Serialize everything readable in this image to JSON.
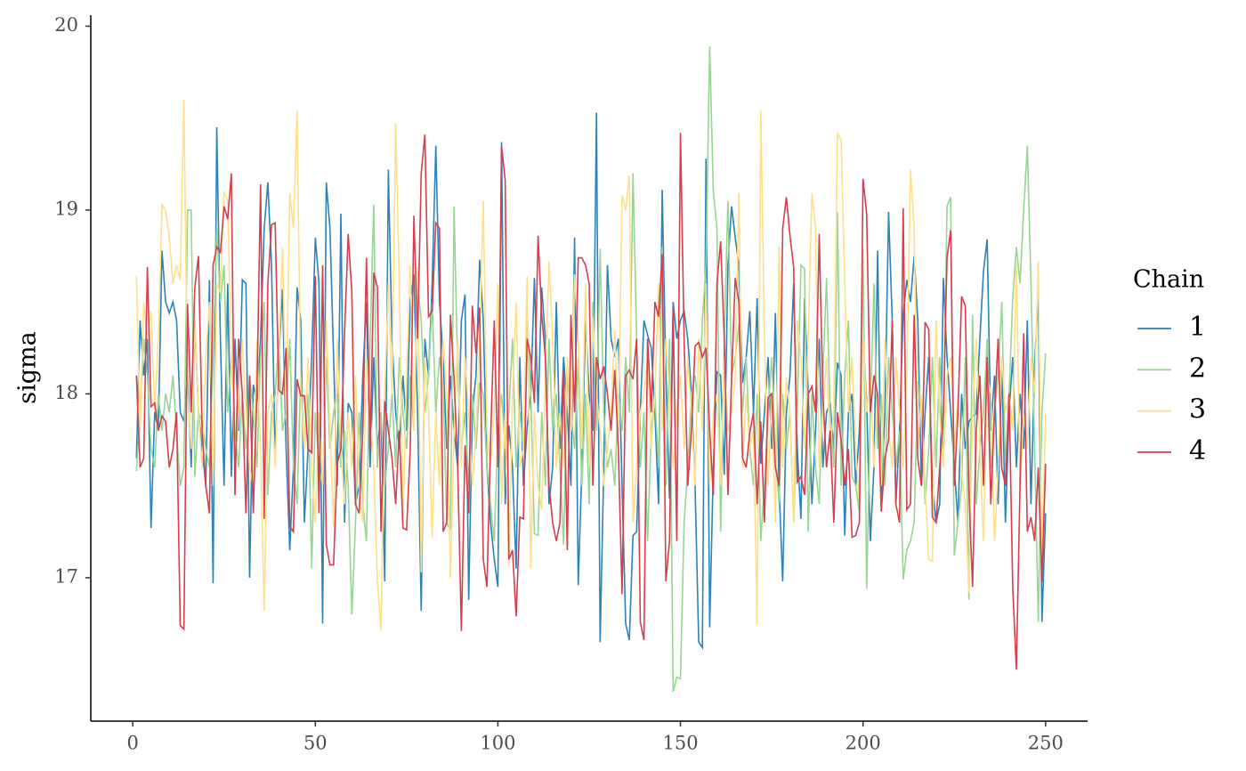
{
  "chart_data": {
    "type": "line",
    "ylabel": "sigma",
    "legend_title": "Chain",
    "legend": "right",
    "grid": false,
    "xlim": [
      -11.5,
      261.5
    ],
    "ylim": [
      16.22,
      20.06
    ],
    "xticks": [
      0,
      50,
      100,
      150,
      200,
      250
    ],
    "yticks": [
      17,
      18,
      19,
      20
    ],
    "x": [
      1,
      2,
      3,
      4,
      5,
      6,
      7,
      8,
      9,
      10,
      11,
      12,
      13,
      14,
      15,
      16,
      17,
      18,
      19,
      20,
      21,
      22,
      23,
      24,
      25,
      26,
      27,
      28,
      29,
      30,
      31,
      32,
      33,
      34,
      35,
      36,
      37,
      38,
      39,
      40,
      41,
      42,
      43,
      44,
      45,
      46,
      47,
      48,
      49,
      50,
      51,
      52,
      53,
      54,
      55,
      56,
      57,
      58,
      59,
      60,
      61,
      62,
      63,
      64,
      65,
      66,
      67,
      68,
      69,
      70,
      71,
      72,
      73,
      74,
      75,
      76,
      77,
      78,
      79,
      80,
      81,
      82,
      83,
      84,
      85,
      86,
      87,
      88,
      89,
      90,
      91,
      92,
      93,
      94,
      95,
      96,
      97,
      98,
      99,
      100,
      101,
      102,
      103,
      104,
      105,
      106,
      107,
      108,
      109,
      110,
      111,
      112,
      113,
      114,
      115,
      116,
      117,
      118,
      119,
      120,
      121,
      122,
      123,
      124,
      125,
      126,
      127,
      128,
      129,
      130,
      131,
      132,
      133,
      134,
      135,
      136,
      137,
      138,
      139,
      140,
      141,
      142,
      143,
      144,
      145,
      146,
      147,
      148,
      149,
      150,
      151,
      152,
      153,
      154,
      155,
      156,
      157,
      158,
      159,
      160,
      161,
      162,
      163,
      164,
      165,
      166,
      167,
      168,
      169,
      170,
      171,
      172,
      173,
      174,
      175,
      176,
      177,
      178,
      179,
      180,
      181,
      182,
      183,
      184,
      185,
      186,
      187,
      188,
      189,
      190,
      191,
      192,
      193,
      194,
      195,
      196,
      197,
      198,
      199,
      200,
      201,
      202,
      203,
      204,
      205,
      206,
      207,
      208,
      209,
      210,
      211,
      212,
      213,
      214,
      215,
      216,
      217,
      218,
      219,
      220,
      221,
      222,
      223,
      224,
      225,
      226,
      227,
      228,
      229,
      230,
      231,
      232,
      233,
      234,
      235,
      236,
      237,
      238,
      239,
      240,
      241,
      242,
      243,
      244,
      245,
      246,
      247,
      248,
      249,
      250
    ],
    "series": [
      {
        "name": "1",
        "color": "#2b83ba",
        "values": [
          17.65,
          18.4,
          18.1,
          18.3,
          17.27,
          17.9,
          17.8,
          18.78,
          18.5,
          18.44,
          18.5,
          18.4,
          17.9,
          17.85,
          18.1,
          17.6,
          18.38,
          17.9,
          17.7,
          17.5,
          18.62,
          16.97,
          19.45,
          18.3,
          17.5,
          18.6,
          17.55,
          18.3,
          17.8,
          18.62,
          18.6,
          17.0,
          18.05,
          17.95,
          18.3,
          18.9,
          19.15,
          18.7,
          17.65,
          18.2,
          18.57,
          17.7,
          17.15,
          17.6,
          18.58,
          18.4,
          17.3,
          17.7,
          18.2,
          18.85,
          18.6,
          16.75,
          19.15,
          18.9,
          18.2,
          17.5,
          18.98,
          17.3,
          17.95,
          17.9,
          17.4,
          17.5,
          18.1,
          18.5,
          17.6,
          18.2,
          17.7,
          17.9,
          16.98,
          19.22,
          18.3,
          17.9,
          17.7,
          18.1,
          17.8,
          18.5,
          18.65,
          17.9,
          16.82,
          18.3,
          18.1,
          18.6,
          19.35,
          18.5,
          18.2,
          17.7,
          18.1,
          17.8,
          17.6,
          18.4,
          18.54,
          16.88,
          17.9,
          18.1,
          18.73,
          18.4,
          17.6,
          17.3,
          17.1,
          16.95,
          19.37,
          17.4,
          17.83,
          17.6,
          17.05,
          18.2,
          17.5,
          17.82,
          18.0,
          18.63,
          17.9,
          18.58,
          18.3,
          17.4,
          17.6,
          18.5,
          17.7,
          18.2,
          17.9,
          17.5,
          18.85,
          16.96,
          17.6,
          18.4,
          18.0,
          17.8,
          19.53,
          16.65,
          17.6,
          18.7,
          18.3,
          18.2,
          18.3,
          17.5,
          16.75,
          16.66,
          17.23,
          17.25,
          17.9,
          18.4,
          18.32,
          18.25,
          17.9,
          17.4,
          19.11,
          18.1,
          17.43,
          18.5,
          18.3,
          18.4,
          18.45,
          18.3,
          18.0,
          17.5,
          16.65,
          16.62,
          19.28,
          16.73,
          17.6,
          18.12,
          18.1,
          17.56,
          18.7,
          19.02,
          18.85,
          18.7,
          18.06,
          18.2,
          18.45,
          17.9,
          18.52,
          17.62,
          17.9,
          18.2,
          17.7,
          18.44,
          17.5,
          16.98,
          17.9,
          18.1,
          18.6,
          17.7,
          17.32,
          18.52,
          18.0,
          17.4,
          17.8,
          18.3,
          17.6,
          17.9,
          17.95,
          17.7,
          18.17,
          18.1,
          17.23,
          17.9,
          18.0,
          17.5,
          17.8,
          18.3,
          17.95,
          17.2,
          17.6,
          18.78,
          17.45,
          17.9,
          18.99,
          18.4,
          17.4,
          17.8,
          18.43,
          18.62,
          18.5,
          18.75,
          18.4,
          17.5,
          17.9,
          18.2,
          17.51,
          17.3,
          17.4,
          18.63,
          18.2,
          17.9,
          17.6,
          17.3,
          18.0,
          17.7,
          17.85,
          17.88,
          17.89,
          18.3,
          18.67,
          18.84,
          17.8,
          18.1,
          17.4,
          18.16,
          17.3,
          17.9,
          18.2,
          17.6,
          18.0,
          17.7,
          18.4,
          17.4,
          18.16,
          18.54,
          16.76,
          17.35
        ]
      },
      {
        "name": "2",
        "color": "#99d594",
        "values": [
          17.58,
          17.9,
          18.3,
          18.1,
          17.7,
          17.6,
          18.0,
          17.8,
          18.0,
          17.9,
          18.1,
          17.8,
          17.5,
          17.6,
          19.0,
          19.0,
          17.55,
          17.9,
          17.85,
          17.7,
          17.6,
          18.2,
          18.9,
          18.5,
          18.7,
          17.9,
          18.2,
          17.8,
          17.6,
          18.0,
          17.7,
          18.1,
          17.9,
          17.6,
          18.2,
          18.5,
          17.45,
          17.9,
          18.0,
          18.3,
          17.8,
          17.9,
          18.3,
          17.6,
          17.4,
          18.1,
          17.7,
          18.0,
          17.05,
          17.9,
          17.6,
          17.5,
          18.2,
          17.7,
          17.9,
          18.0,
          17.6,
          17.8,
          17.5,
          16.8,
          17.3,
          17.9,
          17.4,
          17.2,
          18.3,
          19.03,
          17.6,
          17.9,
          17.5,
          17.7,
          18.0,
          17.6,
          18.2,
          17.9,
          17.7,
          18.1,
          17.8,
          18.6,
          18.4,
          17.9,
          18.1,
          18.5,
          17.9,
          18.2,
          18.05,
          17.3,
          17.26,
          19.02,
          18.1,
          17.7,
          17.9,
          17.5,
          18.0,
          17.7,
          18.06,
          18.0,
          17.6,
          17.4,
          17.2,
          17.8,
          18.0,
          17.7,
          17.9,
          18.3,
          17.6,
          17.9,
          17.7,
          18.45,
          18.0,
          17.24,
          17.23,
          17.9,
          17.5,
          18.3,
          17.8,
          18.0,
          17.6,
          17.18,
          18.1,
          17.9,
          17.7,
          18.2,
          17.5,
          18.0,
          17.4,
          18.5,
          17.8,
          18.79,
          17.9,
          17.6,
          17.7,
          17.5,
          18.0,
          17.8,
          18.2,
          17.9,
          19.2,
          18.3,
          17.6,
          17.9,
          17.2,
          17.8,
          18.0,
          17.6,
          18.8,
          17.5,
          18.3,
          16.38,
          16.46,
          16.45,
          17.3,
          17.6,
          18.0,
          18.1,
          17.9,
          18.4,
          18.7,
          19.89,
          19.1,
          18.9,
          17.25,
          18.3,
          19.05,
          18.1,
          18.2,
          18.38,
          17.9,
          18.2,
          17.7,
          17.5,
          18.0,
          17.2,
          17.5,
          17.9,
          18.2,
          17.7,
          17.4,
          18.0,
          17.7,
          17.9,
          17.3,
          17.9,
          18.7,
          18.68,
          17.25,
          18.0,
          17.6,
          17.4,
          18.1,
          18.63,
          17.9,
          17.6,
          18.99,
          17.5,
          18.1,
          18.4,
          17.55,
          17.5,
          17.36,
          18.79,
          16.94,
          17.9,
          18.6,
          17.7,
          18.0,
          17.5,
          18.2,
          17.9,
          17.6,
          17.8,
          16.99,
          17.15,
          17.2,
          17.3,
          18.07,
          17.9,
          17.4,
          17.7,
          18.2,
          17.6,
          18.2,
          17.7,
          19.02,
          19.07,
          17.12,
          17.3,
          17.5,
          18.2,
          16.88,
          18.43,
          17.4,
          17.7,
          17.9,
          18.3,
          17.6,
          17.9,
          18.1,
          18.5,
          17.6,
          18.0,
          18.52,
          18.8,
          18.6,
          19.0,
          19.35,
          18.6,
          17.7,
          16.76,
          17.9,
          18.22
        ]
      },
      {
        "name": "3",
        "color": "#fee08b",
        "values": [
          18.64,
          17.8,
          18.5,
          18.3,
          18.45,
          17.9,
          18.3,
          19.03,
          19.0,
          18.85,
          18.6,
          18.7,
          18.62,
          19.6,
          18.0,
          17.7,
          18.4,
          17.9,
          17.6,
          18.2,
          18.5,
          17.5,
          18.6,
          18.55,
          19.1,
          19.05,
          18.2,
          17.6,
          17.9,
          18.3,
          17.9,
          17.6,
          17.5,
          18.3,
          17.7,
          16.82,
          17.9,
          18.0,
          17.6,
          18.2,
          18.8,
          17.9,
          19.09,
          18.9,
          19.54,
          18.0,
          17.7,
          18.2,
          17.6,
          17.3,
          17.9,
          17.5,
          18.4,
          17.8,
          17.28,
          18.3,
          17.7,
          17.4,
          17.9,
          17.6,
          18.1,
          17.5,
          17.3,
          18.2,
          17.9,
          17.6,
          16.98,
          16.71,
          18.0,
          18.6,
          18.0,
          19.47,
          18.6,
          17.33,
          18.1,
          18.7,
          17.8,
          18.69,
          17.03,
          18.2,
          17.9,
          17.22,
          17.9,
          17.5,
          18.3,
          18.0,
          17.0,
          17.8,
          18.3,
          17.6,
          18.2,
          17.9,
          17.5,
          17.8,
          18.3,
          19.05,
          17.8,
          17.6,
          17.9,
          18.6,
          17.4,
          17.9,
          17.06,
          18.0,
          18.5,
          17.6,
          17.7,
          18.64,
          17.05,
          17.9,
          17.5,
          17.37,
          18.1,
          18.72,
          18.3,
          17.6,
          17.9,
          17.6,
          18.2,
          17.8,
          18.65,
          18.3,
          17.7,
          18.6,
          17.6,
          18.42,
          18.0,
          17.8,
          17.5,
          17.7,
          17.9,
          18.35,
          17.8,
          19.08,
          19.0,
          19.19,
          17.3,
          17.6,
          17.9,
          18.0,
          18.2,
          17.7,
          18.0,
          18.6,
          17.8,
          18.3,
          18.0,
          17.6,
          17.9,
          18.1,
          17.7,
          18.2,
          17.9,
          17.5,
          18.3,
          17.8,
          18.6,
          17.5,
          17.9,
          18.0,
          17.5,
          18.2,
          17.8,
          17.9,
          18.1,
          19.09,
          17.6,
          18.0,
          17.7,
          17.8,
          16.74,
          19.54,
          18.3,
          17.5,
          18.0,
          17.3,
          18.8,
          17.6,
          18.09,
          17.9,
          17.3,
          18.4,
          18.2,
          17.7,
          18.3,
          19.09,
          18.9,
          17.6,
          17.9,
          18.2,
          17.7,
          17.9,
          19.42,
          19.38,
          18.6,
          17.9,
          18.2,
          17.7,
          17.4,
          18.3,
          17.9,
          18.1,
          17.6,
          18.0,
          17.5,
          18.3,
          17.8,
          17.6,
          18.2,
          17.9,
          17.6,
          18.1,
          19.22,
          18.9,
          17.7,
          18.0,
          17.5,
          17.1,
          17.09,
          18.4,
          17.9,
          17.6,
          18.1,
          18.2,
          17.7,
          18.0,
          17.58,
          17.4,
          16.92,
          17.9,
          18.3,
          17.7,
          17.2,
          18.1,
          18.0,
          17.2,
          17.6,
          18.2,
          17.9,
          18.0,
          17.8,
          18.72,
          17.5,
          17.89,
          17.7,
          18.2,
          18.0,
          18.72,
          17.1,
          17.89
        ]
      },
      {
        "name": "4",
        "color": "#d53e4f",
        "values": [
          18.1,
          17.6,
          17.65,
          18.69,
          17.93,
          17.95,
          17.8,
          17.88,
          17.85,
          17.6,
          17.7,
          17.9,
          16.74,
          16.72,
          18.49,
          17.9,
          18.58,
          18.75,
          17.8,
          17.5,
          17.35,
          18.7,
          18.8,
          18.77,
          19.02,
          18.95,
          19.2,
          17.45,
          18.3,
          18.0,
          17.35,
          18.1,
          17.35,
          18.0,
          19.14,
          17.32,
          18.6,
          18.92,
          18.93,
          18.02,
          18.0,
          18.25,
          17.28,
          17.25,
          18.08,
          17.99,
          17.99,
          17.7,
          17.68,
          18.64,
          17.35,
          18.7,
          17.18,
          17.07,
          17.07,
          17.62,
          17.7,
          18.33,
          18.87,
          18.55,
          17.4,
          17.35,
          17.8,
          18.74,
          17.7,
          18.66,
          18.58,
          17.25,
          17.96,
          17.8,
          17.65,
          17.4,
          17.8,
          17.27,
          17.26,
          17.7,
          18.97,
          18.3,
          19.2,
          19.41,
          18.42,
          18.45,
          18.93,
          18.9,
          17.25,
          17.3,
          18.43,
          18.08,
          17.6,
          16.71,
          17.72,
          17.35,
          18.48,
          18.22,
          18.47,
          17.1,
          16.95,
          17.75,
          18.4,
          17.6,
          19.35,
          19.16,
          17.1,
          17.15,
          16.79,
          17.33,
          17.32,
          18.3,
          18.2,
          17.95,
          18.86,
          18.43,
          18.2,
          17.5,
          17.3,
          17.2,
          17.3,
          18.13,
          17.15,
          18.43,
          17.9,
          18.74,
          18.74,
          18.7,
          18.6,
          17.5,
          18.2,
          18.08,
          18.15,
          18.0,
          17.8,
          18.13,
          17.7,
          16.91,
          18.1,
          18.13,
          18.08,
          18.3,
          16.76,
          16.66,
          18.3,
          17.9,
          18.5,
          18.42,
          18.76,
          16.98,
          17.2,
          18.46,
          17.2,
          19.42,
          18.3,
          17.5,
          17.8,
          18.26,
          18.28,
          18.2,
          18.25,
          17.8,
          17.45,
          18.6,
          18.83,
          18.3,
          17.45,
          18.08,
          18.63,
          18.5,
          17.65,
          17.6,
          17.79,
          17.9,
          17.4,
          17.85,
          17.3,
          17.98,
          18.0,
          17.6,
          17.5,
          18.9,
          19.07,
          18.86,
          18.69,
          17.52,
          17.55,
          17.45,
          18.0,
          18.04,
          17.9,
          18.87,
          18.0,
          17.6,
          17.8,
          17.3,
          17.9,
          17.75,
          17.5,
          17.7,
          17.22,
          17.23,
          17.3,
          19.17,
          18.98,
          17.9,
          18.1,
          18.0,
          17.36,
          17.65,
          17.75,
          18.4,
          17.4,
          17.3,
          19.01,
          17.37,
          17.4,
          18.43,
          17.65,
          17.5,
          18.39,
          18.35,
          17.33,
          17.3,
          17.6,
          17.9,
          18.74,
          18.89,
          17.5,
          17.9,
          18.53,
          18.48,
          17.47,
          16.95,
          17.8,
          18.1,
          17.5,
          18.2,
          17.4,
          17.9,
          18.3,
          17.6,
          17.5,
          18.0,
          16.95,
          16.5,
          17.5,
          18.33,
          17.25,
          17.33,
          17.2,
          17.6,
          16.98,
          17.62
        ]
      }
    ]
  }
}
